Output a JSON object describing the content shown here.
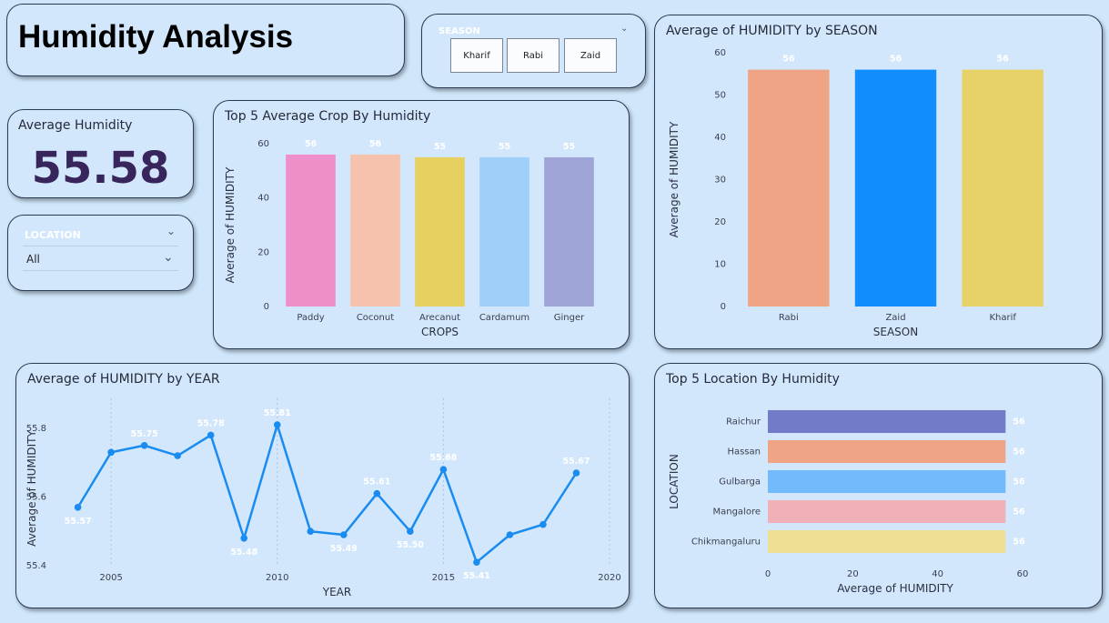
{
  "page": {
    "title": "Humidity Analysis"
  },
  "season_slicer": {
    "title": "SEASON",
    "options": [
      "Kharif",
      "Rabi",
      "Zaid"
    ]
  },
  "kpi": {
    "label": "Average Humidity",
    "value": "55.58"
  },
  "location_slicer": {
    "title": "LOCATION",
    "selected": "All"
  },
  "colors": {
    "background": "#cfe6fb",
    "card": "#d3e7fc",
    "line": "#1a8cf0",
    "kpi": "#37255c"
  },
  "chart_data": [
    {
      "id": "crops",
      "type": "bar",
      "title": "Top 5 Average Crop By Humidity",
      "xlabel": "CROPS",
      "ylabel": "Average of HUMIDITY",
      "categories": [
        "Paddy",
        "Coconut",
        "Arecanut",
        "Cardamum",
        "Ginger"
      ],
      "values": [
        56,
        56,
        55,
        55,
        55
      ],
      "data_labels": [
        "56",
        "56",
        "55",
        "55",
        "55"
      ],
      "colors": [
        "#ee8fca",
        "#f5c3ad",
        "#e6d060",
        "#a0cffa",
        "#a0a5d8"
      ],
      "ylim": [
        0,
        60
      ],
      "yticks": [
        0,
        20,
        40,
        60
      ]
    },
    {
      "id": "season",
      "type": "bar",
      "title": "Average of HUMIDITY by SEASON",
      "xlabel": "SEASON",
      "ylabel": "Average of HUMIDITY",
      "categories": [
        "Rabi",
        "Zaid",
        "Kharif"
      ],
      "values": [
        56,
        56,
        56
      ],
      "data_labels": [
        "56",
        "56",
        "56"
      ],
      "colors": [
        "#efa585",
        "#118dfe",
        "#e6d266"
      ],
      "ylim": [
        0,
        60
      ],
      "yticks": [
        0,
        10,
        20,
        30,
        40,
        50,
        60
      ]
    },
    {
      "id": "year",
      "type": "line",
      "title": "Average of HUMIDITY by YEAR",
      "xlabel": "YEAR",
      "ylabel": "Average of HUMIDITY",
      "x": [
        2004,
        2005,
        2006,
        2007,
        2008,
        2009,
        2010,
        2011,
        2012,
        2013,
        2014,
        2015,
        2016,
        2017,
        2018,
        2019
      ],
      "y": [
        55.57,
        55.73,
        55.75,
        55.72,
        55.78,
        55.48,
        55.81,
        55.5,
        55.49,
        55.61,
        55.5,
        55.68,
        55.41,
        55.49,
        55.52,
        55.67
      ],
      "point_labels": [
        {
          "i": 0,
          "text": "55.57"
        },
        {
          "i": 2,
          "text": "55.75"
        },
        {
          "i": 4,
          "text": "55.78"
        },
        {
          "i": 5,
          "text": "55.48"
        },
        {
          "i": 6,
          "text": "55.81"
        },
        {
          "i": 8,
          "text": "55.49"
        },
        {
          "i": 9,
          "text": "55.61"
        },
        {
          "i": 10,
          "text": "55.50"
        },
        {
          "i": 11,
          "text": "55.68"
        },
        {
          "i": 12,
          "text": "55.41"
        },
        {
          "i": 15,
          "text": "55.67"
        }
      ],
      "xlim": [
        2003.6,
        2020
      ],
      "xticks": [
        2005,
        2010,
        2015,
        2020
      ],
      "ylim": [
        55.4,
        55.85
      ],
      "yticks": [
        55.4,
        55.6,
        55.8
      ],
      "grid": "vertical dotted"
    },
    {
      "id": "location",
      "type": "bar",
      "orientation": "horizontal",
      "title": "Top 5 Location By Humidity",
      "xlabel": "Average of HUMIDITY",
      "ylabel": "LOCATION",
      "categories": [
        "Raichur",
        "Hassan",
        "Gulbarga",
        "Mangalore",
        "Chikmangaluru"
      ],
      "values": [
        56,
        56,
        56,
        56,
        56
      ],
      "data_labels": [
        "56",
        "56",
        "56",
        "56",
        "56"
      ],
      "colors": [
        "#717bc8",
        "#efa585",
        "#72bafc",
        "#f0b0b7",
        "#eedf94"
      ],
      "xlim": [
        0,
        60
      ],
      "xticks": [
        0,
        20,
        40,
        60
      ]
    }
  ]
}
